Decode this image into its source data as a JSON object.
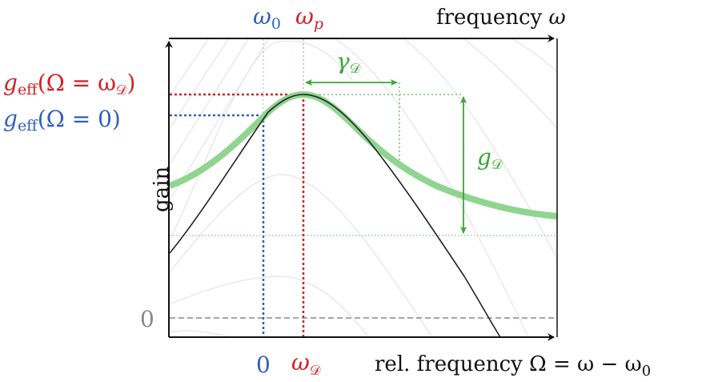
{
  "colors": {
    "red": "#d41f26",
    "blue": "#2f5fbf",
    "green": "#36a836",
    "green_light": "#8fd48f",
    "axis": "#111111",
    "zero_line": "#888888",
    "background_curves": "#e4e4e4"
  },
  "top_axis": {
    "omega0": {
      "main": "ω",
      "sub": "0"
    },
    "omegap": {
      "main": "ω",
      "sub": "p"
    },
    "label": {
      "text": "frequency ",
      "symbol": "ω"
    }
  },
  "left_labels": {
    "geff_peak": {
      "g": "g",
      "sub": "eff",
      "arg_open": "(Ω = ω",
      "arg_sub": "𝒟",
      "arg_close": ")"
    },
    "geff_zero": {
      "g": "g",
      "sub": "eff",
      "arg": "(Ω = 0)"
    },
    "y_axis_label": "gain",
    "zero": "0"
  },
  "bottom_axis": {
    "zero": "0",
    "omegaD": {
      "main": "ω",
      "sub": "𝒟"
    },
    "label": {
      "text": "rel. frequency  Ω = ω − ω",
      "sub": "0"
    }
  },
  "annotations": {
    "gammaD": {
      "main": "γ",
      "sub": "𝒟"
    },
    "gD": {
      "main": "g",
      "sub": "𝒟"
    }
  },
  "icons": [
    "y-axis-arrow-icon",
    "x-axis-arrow-icon",
    "top-axis-arrow-icon"
  ]
}
